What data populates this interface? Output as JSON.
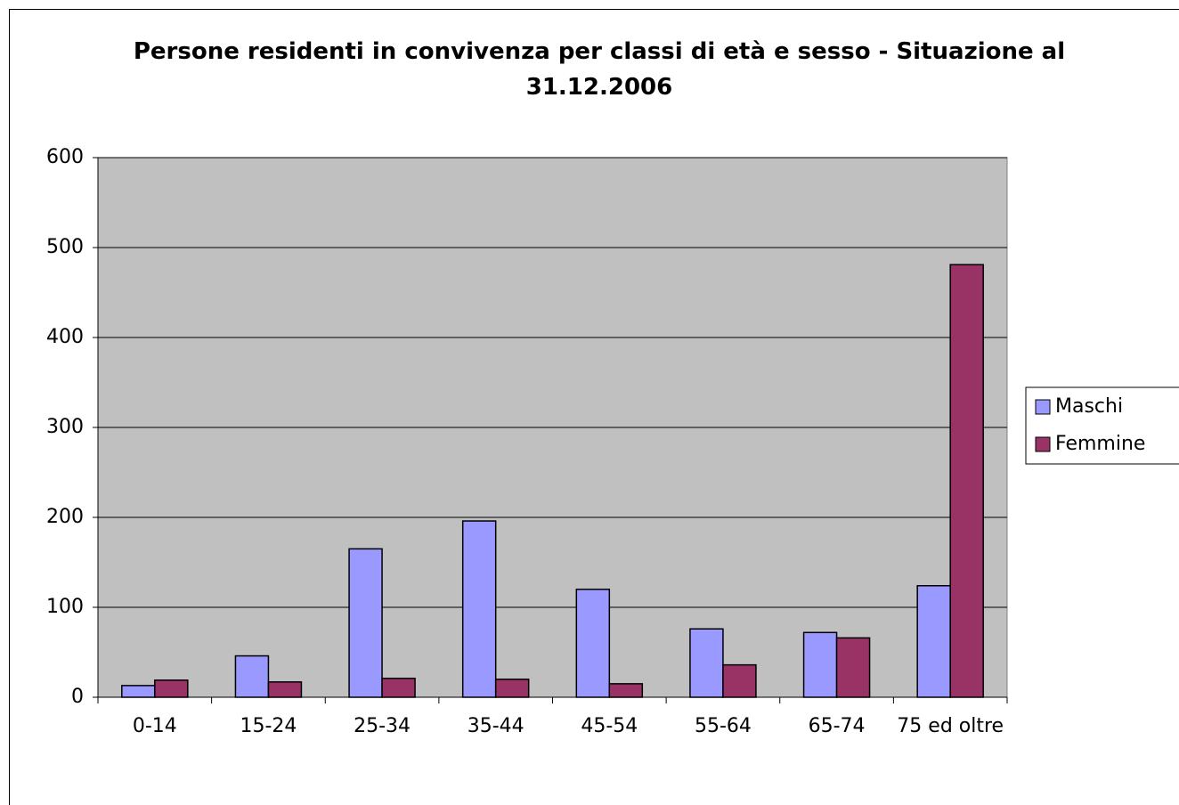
{
  "chart_data": {
    "type": "bar",
    "title": "Persone residenti in convivenza per classi di età e sesso - Situazione al 31.12.2006",
    "categories": [
      "0-14",
      "15-24",
      "25-34",
      "35-44",
      "45-54",
      "55-64",
      "65-74",
      "75 ed oltre"
    ],
    "series": [
      {
        "name": "Maschi",
        "color": "#9999ff",
        "values": [
          13,
          46,
          165,
          196,
          120,
          76,
          72,
          124
        ]
      },
      {
        "name": "Femmine",
        "color": "#993366",
        "values": [
          19,
          17,
          21,
          20,
          15,
          36,
          66,
          481
        ]
      }
    ],
    "ylim": [
      0,
      600
    ],
    "yticks": [
      0,
      100,
      200,
      300,
      400,
      500,
      600
    ],
    "grid": true,
    "legend": "right"
  }
}
